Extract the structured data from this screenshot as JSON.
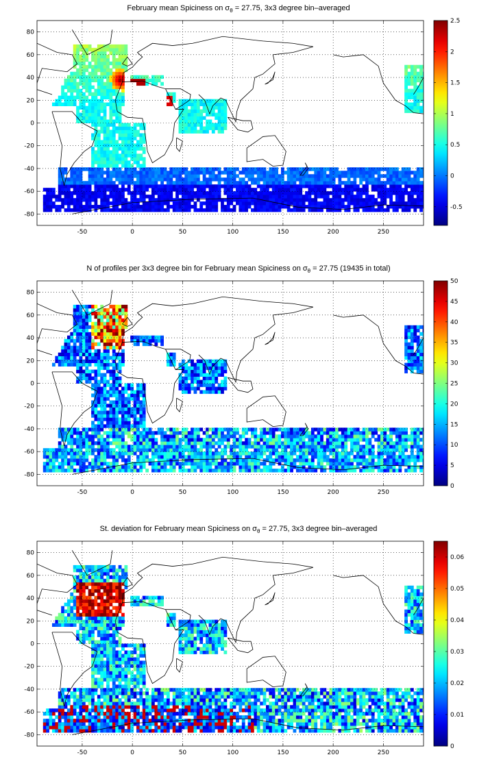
{
  "panels": [
    {
      "id": "mean",
      "title_before": "February mean Spiciness on σ",
      "title_sub": "θ",
      "title_after": " = 27.75, 3x3 degree bin–averaged",
      "colorbar": {
        "min": -0.8,
        "max": 2.5,
        "ticks": [
          -0.5,
          0,
          0.5,
          1,
          1.5,
          2,
          2.5
        ],
        "tick_labels": [
          "-0.5",
          "0",
          "0.5",
          "1",
          "1.5",
          "2",
          "2.5"
        ]
      }
    },
    {
      "id": "count",
      "title_before": "N of profiles per 3x3 degree bin for February mean Spiciness on σ",
      "title_sub": "θ",
      "title_after": " = 27.75 (19435 in total)",
      "colorbar": {
        "min": 0,
        "max": 50,
        "ticks": [
          0,
          5,
          10,
          15,
          20,
          25,
          30,
          35,
          40,
          45,
          50
        ],
        "tick_labels": [
          "0",
          "5",
          "10",
          "15",
          "20",
          "25",
          "30",
          "35",
          "40",
          "45",
          "50"
        ]
      }
    },
    {
      "id": "std",
      "title_before": "St. deviation for February mean Spiciness on σ",
      "title_sub": "θ",
      "title_after": " = 27.75, 3x3 degree bin–averaged",
      "colorbar": {
        "min": 0,
        "max": 0.065,
        "ticks": [
          0,
          0.01,
          0.02,
          0.03,
          0.04,
          0.05,
          0.06
        ],
        "tick_labels": [
          "0",
          "0.01",
          "0.02",
          "0.03",
          "0.04",
          "0.05",
          "0.06"
        ]
      }
    }
  ],
  "chart_data": {
    "type": "heatmap",
    "map_projection": "equirectangular",
    "xlim": [
      -95,
      290
    ],
    "ylim": [
      -90,
      90
    ],
    "x_ticks": [
      -50,
      0,
      50,
      100,
      150,
      200,
      250
    ],
    "x_tick_labels": [
      "-50",
      "0",
      "50",
      "100",
      "150",
      "200",
      "250"
    ],
    "y_ticks": [
      -80,
      -60,
      -40,
      -20,
      0,
      20,
      40,
      60,
      80
    ],
    "y_tick_labels": [
      "-80",
      "-60",
      "-40",
      "-20",
      "0",
      "20",
      "40",
      "60",
      "80"
    ],
    "grid": true,
    "grid_style": "dotted",
    "colormap": "jet",
    "bin_size_deg": 3
  }
}
